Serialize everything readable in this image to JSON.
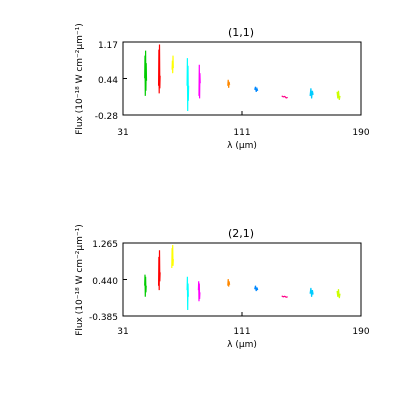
{
  "chart_data": [
    {
      "type": "line",
      "title": "(1,1)",
      "xlabel": "λ (μm)",
      "ylabel": "Flux (10⁻¹⁸ W cm⁻²μm⁻¹)",
      "xlim": [
        31,
        190
      ],
      "ylim": [
        -0.28,
        1.17
      ],
      "xticks": [
        "31",
        "111",
        "190"
      ],
      "yticks": [
        "1.17",
        "0.44",
        "-0.28"
      ],
      "grid": false,
      "series": [
        {
          "color": "#00cc00",
          "x": [
            45.5,
            45.7,
            45.9,
            46.1,
            46.3,
            46.5,
            46.7
          ],
          "y": [
            0.45,
            0.9,
            0.1,
            1.0,
            0.2,
            0.75,
            0.4
          ]
        },
        {
          "color": "#ff0000",
          "x": [
            54.8,
            55.0,
            55.2,
            55.4,
            55.6,
            55.8
          ],
          "y": [
            0.3,
            1.02,
            0.15,
            1.12,
            0.25,
            0.5
          ]
        },
        {
          "color": "#ffff00",
          "x": [
            63.8,
            64.0,
            64.2,
            64.4,
            64.6
          ],
          "y": [
            0.62,
            0.8,
            0.55,
            0.9,
            0.65
          ]
        },
        {
          "color": "#00ffff",
          "x": [
            73.8,
            74.0,
            74.2,
            74.4,
            74.6,
            74.8
          ],
          "y": [
            0.3,
            0.85,
            -0.2,
            0.7,
            0.0,
            0.3
          ]
        },
        {
          "color": "#ff00ff",
          "x": [
            81.8,
            82.0,
            82.2,
            82.4,
            82.6
          ],
          "y": [
            0.1,
            0.72,
            0.05,
            0.55,
            0.35
          ]
        },
        {
          "color": "#ff8800",
          "x": [
            101.0,
            101.3,
            101.6,
            101.9,
            102.2
          ],
          "y": [
            0.3,
            0.42,
            0.26,
            0.38,
            0.32
          ]
        },
        {
          "color": "#0088ff",
          "x": [
            119.0,
            119.5,
            120.0,
            120.5,
            121.0
          ],
          "y": [
            0.22,
            0.28,
            0.18,
            0.24,
            0.2
          ]
        },
        {
          "color": "#ff0088",
          "x": [
            137.0,
            138.0,
            139.0,
            140.0,
            141.0
          ],
          "y": [
            0.1,
            0.08,
            0.09,
            0.06,
            0.07
          ]
        },
        {
          "color": "#00ccff",
          "x": [
            156.0,
            156.5,
            157.0,
            157.5,
            158.0
          ],
          "y": [
            0.1,
            0.25,
            0.05,
            0.2,
            0.12
          ]
        },
        {
          "color": "#ccff00",
          "x": [
            174.0,
            174.5,
            175.0,
            175.5,
            176.0
          ],
          "y": [
            0.18,
            0.05,
            0.2,
            0.02,
            0.1
          ]
        }
      ]
    },
    {
      "type": "line",
      "title": "(2,1)",
      "xlabel": "λ (μm)",
      "ylabel": "Flux (10⁻¹⁸ W cm⁻²μm⁻¹)",
      "xlim": [
        31,
        190
      ],
      "ylim": [
        -0.385,
        1.265
      ],
      "xticks": [
        "31",
        "111",
        "190"
      ],
      "yticks": [
        "1.265",
        "0.440",
        "-0.385"
      ],
      "grid": false,
      "series": [
        {
          "color": "#00cc00",
          "x": [
            45.5,
            45.7,
            45.9,
            46.1,
            46.3,
            46.5
          ],
          "y": [
            0.3,
            0.55,
            0.05,
            0.5,
            0.15,
            0.3
          ]
        },
        {
          "color": "#ff0000",
          "x": [
            54.8,
            55.0,
            55.2,
            55.4,
            55.6,
            55.8
          ],
          "y": [
            0.3,
            0.95,
            0.2,
            1.1,
            0.4,
            0.6
          ]
        },
        {
          "color": "#ffff00",
          "x": [
            63.6,
            63.8,
            64.0,
            64.2,
            64.4,
            64.6
          ],
          "y": [
            0.7,
            1.15,
            0.8,
            1.22,
            0.75,
            0.9
          ]
        },
        {
          "color": "#00ffff",
          "x": [
            73.8,
            74.0,
            74.2,
            74.4,
            74.6
          ],
          "y": [
            0.2,
            0.5,
            -0.25,
            0.35,
            0.05
          ]
        },
        {
          "color": "#ff00ff",
          "x": [
            81.4,
            81.6,
            81.8,
            82.0,
            82.2,
            82.4
          ],
          "y": [
            0.2,
            0.4,
            -0.05,
            0.35,
            0.0,
            0.15
          ]
        },
        {
          "color": "#ff8800",
          "x": [
            101.0,
            101.3,
            101.6,
            101.9,
            102.2
          ],
          "y": [
            0.3,
            0.45,
            0.28,
            0.4,
            0.32
          ]
        },
        {
          "color": "#0088ff",
          "x": [
            119.0,
            119.5,
            120.0,
            120.5,
            121.0
          ],
          "y": [
            0.22,
            0.3,
            0.18,
            0.26,
            0.2
          ]
        },
        {
          "color": "#ff0088",
          "x": [
            137.0,
            138.0,
            139.0,
            140.0,
            141.0
          ],
          "y": [
            0.07,
            0.05,
            0.06,
            0.04,
            0.05
          ]
        },
        {
          "color": "#00ccff",
          "x": [
            156.0,
            156.5,
            157.0,
            157.5,
            158.0
          ],
          "y": [
            0.12,
            0.25,
            0.05,
            0.2,
            0.1
          ]
        },
        {
          "color": "#ccff00",
          "x": [
            174.0,
            174.5,
            175.0,
            175.5,
            176.0
          ],
          "y": [
            0.18,
            0.05,
            0.22,
            0.02,
            0.12
          ]
        }
      ]
    }
  ]
}
